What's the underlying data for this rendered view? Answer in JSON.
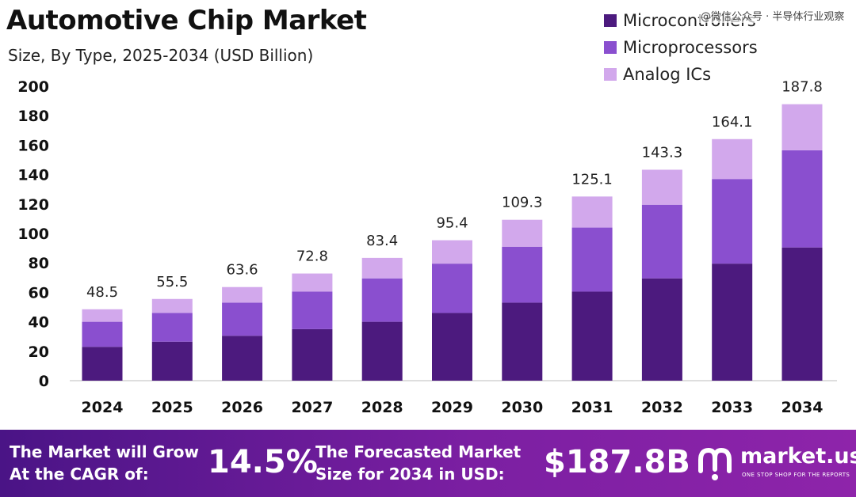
{
  "title": "Automotive Chip Market",
  "subtitle": "Size, By Type, 2025-2034 (USD Billion)",
  "watermark": "@微信公众号 · 半导体行业观察",
  "colors": {
    "microcontrollers": "#4c1a7e",
    "microprocessors": "#8a4fcf",
    "analog": "#d2a8ec",
    "banner_start": "#4a1486",
    "banner_end": "#8e24aa"
  },
  "legend": [
    {
      "label": "Microcontrollers",
      "color": "#4c1a7e"
    },
    {
      "label": "Microprocessors",
      "color": "#8a4fcf"
    },
    {
      "label": "Analog ICs",
      "color": "#d2a8ec"
    }
  ],
  "chart_data": {
    "type": "bar",
    "stacked": true,
    "categories": [
      "2024",
      "2025",
      "2026",
      "2027",
      "2028",
      "2029",
      "2030",
      "2031",
      "2032",
      "2033",
      "2034"
    ],
    "series": [
      {
        "name": "Microcontrollers",
        "values": [
          23,
          26.5,
          30.5,
          35,
          40,
          46,
          53,
          60.5,
          69.5,
          79.5,
          90.5
        ]
      },
      {
        "name": "Microprocessors",
        "values": [
          17,
          19.5,
          22.5,
          25.5,
          29.5,
          33.5,
          38,
          43.5,
          50,
          57.5,
          66
        ]
      },
      {
        "name": "Analog ICs",
        "values": [
          8.5,
          9.5,
          10.6,
          12.3,
          13.9,
          15.9,
          18.3,
          21.1,
          23.8,
          27.1,
          31.3
        ]
      }
    ],
    "totals": [
      "48.5",
      "55.5",
      "63.6",
      "72.8",
      "83.4",
      "95.4",
      "109.3",
      "125.1",
      "143.3",
      "164.1",
      "187.8"
    ],
    "yticks": [
      "0",
      "20",
      "40",
      "60",
      "80",
      "100",
      "120",
      "140",
      "160",
      "180",
      "200"
    ],
    "ylim": [
      0,
      200
    ],
    "grid": false,
    "legend_position": "top-right"
  },
  "banner": {
    "cagr_label_line1": "The Market will Grow",
    "cagr_label_line2": "At the CAGR of:",
    "cagr_value": "14.5%",
    "forecast_label_line1": "The Forecasted Market",
    "forecast_label_line2": "Size for 2034 in USD:",
    "forecast_value": "$187.8B",
    "brand_name": "market.us",
    "brand_tagline": "ONE STOP SHOP FOR THE REPORTS",
    "brand_icon": "market-us-logo-icon"
  }
}
